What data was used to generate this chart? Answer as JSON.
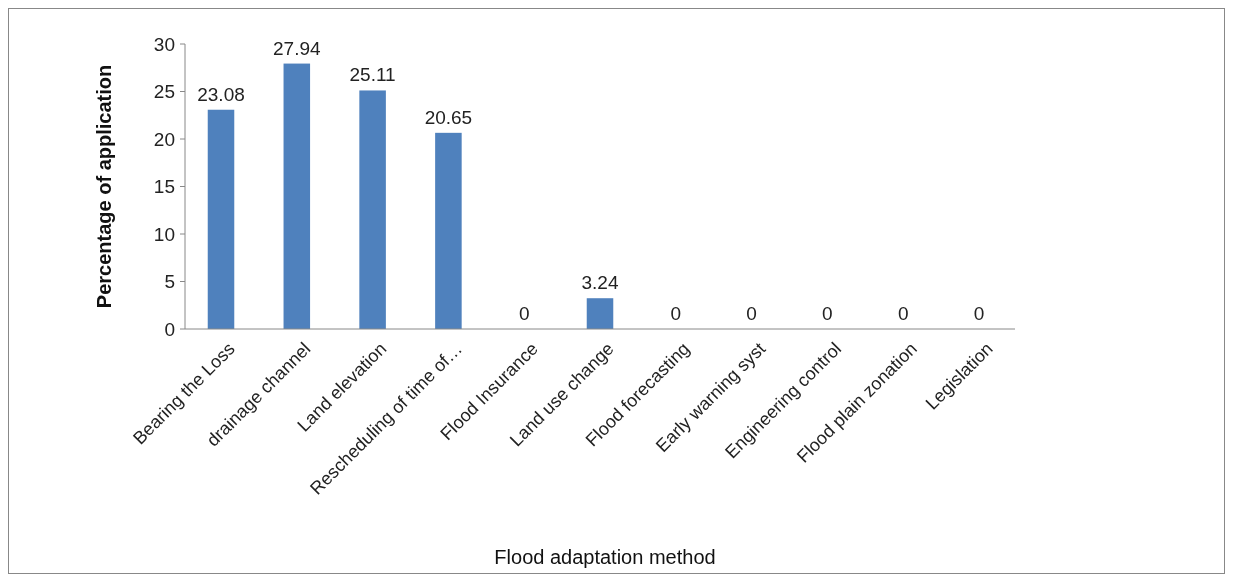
{
  "chart_data": {
    "type": "bar",
    "xlabel": "Flood adaptation method",
    "ylabel": "Percentage of application",
    "categories": [
      "Bearing the Loss",
      "drainage channel",
      "Land elevation",
      "Rescheduling of time of…",
      "Flood Insurance",
      "Land use change",
      "Flood forecasting",
      "Early warning syst",
      "Engineering control",
      "Flood plain zonation",
      "Legislation"
    ],
    "values": [
      23.08,
      27.94,
      25.11,
      20.65,
      0,
      3.24,
      0,
      0,
      0,
      0,
      0
    ],
    "color": "#4f81bd",
    "ylim": [
      0,
      30
    ],
    "yticks": [
      0,
      5,
      10,
      15,
      20,
      25,
      30
    ],
    "data_labels": true,
    "grid": false
  }
}
